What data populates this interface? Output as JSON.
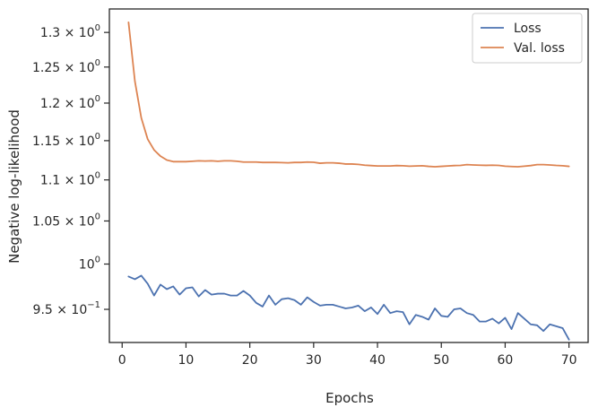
{
  "chart_data": {
    "type": "line",
    "xlabel": "Epochs",
    "ylabel": "Negative log-likelihood",
    "yscale": "log",
    "xlim": [
      -2,
      73
    ],
    "ylim": [
      0.915,
      1.335
    ],
    "x_ticks": [
      0,
      10,
      20,
      30,
      40,
      50,
      60,
      70
    ],
    "y_ticks": [
      {
        "value": 1.3,
        "mantissa": "1.3",
        "exp": "0"
      },
      {
        "value": 1.25,
        "mantissa": "1.25",
        "exp": "0"
      },
      {
        "value": 1.2,
        "mantissa": "1.2",
        "exp": "0"
      },
      {
        "value": 1.15,
        "mantissa": "1.15",
        "exp": "0"
      },
      {
        "value": 1.1,
        "mantissa": "1.1",
        "exp": "0"
      },
      {
        "value": 1.05,
        "mantissa": "1.05",
        "exp": "0"
      },
      {
        "value": 1.0,
        "mantissa": "",
        "exp": "0"
      },
      {
        "value": 0.95,
        "mantissa": "9.5",
        "exp": "−1"
      }
    ],
    "legend_position": "top-right",
    "series": [
      {
        "name": "Loss",
        "color": "#4c72b0",
        "x": [
          1,
          2,
          3,
          4,
          5,
          6,
          7,
          8,
          9,
          10,
          11,
          12,
          13,
          14,
          15,
          16,
          17,
          18,
          19,
          20,
          21,
          22,
          23,
          24,
          25,
          26,
          27,
          28,
          29,
          30,
          31,
          32,
          33,
          34,
          35,
          36,
          37,
          38,
          39,
          40,
          41,
          42,
          43,
          44,
          45,
          46,
          47,
          48,
          49,
          50,
          51,
          52,
          53,
          54,
          55,
          56,
          57,
          58,
          59,
          60,
          61,
          62,
          63,
          64,
          65,
          66,
          67,
          68,
          69,
          70
        ],
        "values": [
          0.986,
          0.983,
          0.987,
          0.978,
          0.965,
          0.977,
          0.972,
          0.975,
          0.966,
          0.973,
          0.974,
          0.964,
          0.971,
          0.966,
          0.967,
          0.967,
          0.965,
          0.965,
          0.97,
          0.965,
          0.957,
          0.953,
          0.965,
          0.955,
          0.961,
          0.962,
          0.96,
          0.955,
          0.963,
          0.958,
          0.954,
          0.955,
          0.955,
          0.953,
          0.951,
          0.952,
          0.954,
          0.948,
          0.952,
          0.945,
          0.955,
          0.946,
          0.948,
          0.947,
          0.934,
          0.944,
          0.942,
          0.939,
          0.951,
          0.943,
          0.942,
          0.95,
          0.951,
          0.946,
          0.944,
          0.937,
          0.937,
          0.94,
          0.935,
          0.941,
          0.929,
          0.946,
          0.94,
          0.934,
          0.933,
          0.927,
          0.934,
          0.932,
          0.93,
          0.918
        ]
      },
      {
        "name": "Val. loss",
        "color": "#dd8452",
        "x": [
          1,
          2,
          3,
          4,
          5,
          6,
          7,
          8,
          9,
          10,
          11,
          12,
          13,
          14,
          15,
          16,
          17,
          18,
          19,
          20,
          21,
          22,
          23,
          24,
          25,
          26,
          27,
          28,
          29,
          30,
          31,
          32,
          33,
          34,
          35,
          36,
          37,
          38,
          39,
          40,
          41,
          42,
          43,
          44,
          45,
          46,
          47,
          48,
          49,
          50,
          51,
          52,
          53,
          54,
          55,
          56,
          57,
          58,
          59,
          60,
          61,
          62,
          63,
          64,
          65,
          66,
          67,
          68,
          69,
          70
        ],
        "values": [
          1.315,
          1.23,
          1.18,
          1.152,
          1.138,
          1.13,
          1.125,
          1.123,
          1.123,
          1.123,
          1.1235,
          1.124,
          1.1238,
          1.124,
          1.1235,
          1.124,
          1.124,
          1.1235,
          1.1225,
          1.1225,
          1.1225,
          1.122,
          1.122,
          1.122,
          1.1218,
          1.1215,
          1.122,
          1.122,
          1.1225,
          1.1222,
          1.121,
          1.1215,
          1.1215,
          1.121,
          1.12,
          1.12,
          1.1195,
          1.1185,
          1.118,
          1.1175,
          1.1175,
          1.1175,
          1.118,
          1.1178,
          1.1172,
          1.1175,
          1.1178,
          1.117,
          1.1165,
          1.117,
          1.1175,
          1.118,
          1.1182,
          1.1192,
          1.1188,
          1.1185,
          1.1183,
          1.1185,
          1.1182,
          1.1172,
          1.1168,
          1.1165,
          1.1172,
          1.118,
          1.1192,
          1.1192,
          1.1188,
          1.1182,
          1.1178,
          1.117
        ]
      }
    ]
  }
}
